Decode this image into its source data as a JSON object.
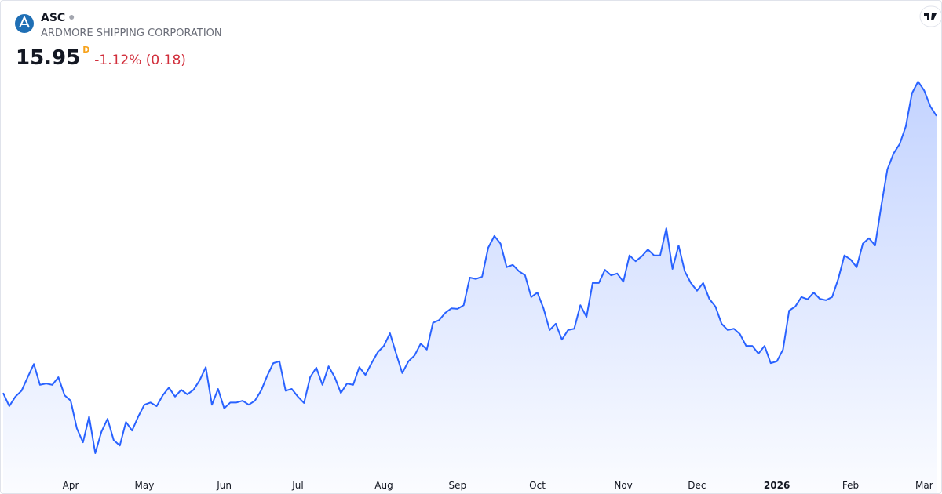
{
  "chart_data": {
    "type": "line",
    "symbol": "ASC",
    "title": "ARDMORE SHIPPING CORPORATION",
    "last_price": 15.95,
    "interval": "D",
    "change": "-1.12% (0.18)",
    "categories": [
      null,
      null,
      null,
      null,
      null,
      null,
      null,
      null,
      null,
      null,
      null,
      "Apr",
      null,
      null,
      null,
      null,
      null,
      null,
      null,
      null,
      null,
      null,
      null,
      "May",
      null,
      null,
      null,
      null,
      null,
      null,
      null,
      null,
      null,
      null,
      null,
      null,
      "Jun",
      null,
      null,
      null,
      null,
      null,
      null,
      null,
      null,
      null,
      null,
      null,
      "Jul",
      null,
      null,
      null,
      null,
      null,
      null,
      null,
      null,
      null,
      null,
      null,
      null,
      null,
      "Aug",
      null,
      null,
      null,
      null,
      null,
      null,
      null,
      null,
      null,
      null,
      null,
      "Sep",
      null,
      null,
      null,
      null,
      null,
      null,
      null,
      null,
      null,
      null,
      null,
      null,
      "Oct",
      null,
      null,
      null,
      null,
      null,
      null,
      null,
      null,
      null,
      null,
      null,
      null,
      null,
      "Nov",
      null,
      null,
      null,
      null,
      null,
      null,
      null,
      null,
      null,
      null,
      null,
      "Dec",
      null,
      null,
      null,
      null,
      null,
      null,
      null,
      null,
      null,
      null,
      null,
      null,
      "2026",
      null,
      null,
      null,
      null,
      null,
      null,
      null,
      null,
      null,
      null,
      null,
      "Feb",
      null,
      null,
      null,
      null,
      null,
      null,
      null,
      null,
      null,
      null,
      null,
      "Mar",
      null,
      null
    ],
    "series": [
      {
        "color": "#2962ff",
        "values": [
          9.83,
          9.54,
          9.75,
          9.88,
          10.18,
          10.47,
          10.01,
          10.04,
          10.01,
          10.18,
          9.78,
          9.66,
          9.05,
          8.74,
          9.31,
          8.5,
          8.97,
          9.26,
          8.79,
          8.67,
          9.19,
          9.0,
          9.31,
          9.57,
          9.62,
          9.54,
          9.78,
          9.95,
          9.75,
          9.9,
          9.8,
          9.9,
          10.11,
          10.4,
          9.57,
          9.92,
          9.49,
          9.62,
          9.62,
          9.66,
          9.57,
          9.66,
          9.88,
          10.21,
          10.49,
          10.53,
          9.88,
          9.92,
          9.75,
          9.61,
          10.18,
          10.39,
          10.01,
          10.42,
          10.18,
          9.83,
          10.04,
          10.01,
          10.4,
          10.23,
          10.49,
          10.73,
          10.87,
          11.15,
          10.7,
          10.27,
          10.53,
          10.66,
          10.92,
          10.79,
          11.38,
          11.44,
          11.6,
          11.7,
          11.69,
          11.77,
          12.38,
          12.35,
          12.4,
          13.04,
          13.3,
          13.13,
          12.61,
          12.66,
          12.52,
          12.43,
          11.95,
          12.05,
          11.7,
          11.22,
          11.36,
          11.01,
          11.22,
          11.25,
          11.77,
          11.51,
          12.26,
          12.26,
          12.55,
          12.43,
          12.47,
          12.29,
          12.87,
          12.74,
          12.85,
          13.0,
          12.87,
          12.87,
          13.47,
          12.57,
          13.09,
          12.52,
          12.26,
          12.09,
          12.26,
          11.91,
          11.74,
          11.36,
          11.22,
          11.25,
          11.13,
          10.87,
          10.87,
          10.7,
          10.87,
          10.49,
          10.53,
          10.79,
          11.65,
          11.74,
          11.95,
          11.9,
          12.05,
          11.91,
          11.88,
          11.95,
          12.35,
          12.87,
          12.78,
          12.61,
          13.13,
          13.25,
          13.09,
          13.96,
          14.77,
          15.12,
          15.33,
          15.72,
          16.45,
          16.71,
          16.51,
          16.16,
          15.95
        ]
      }
    ]
  }
}
